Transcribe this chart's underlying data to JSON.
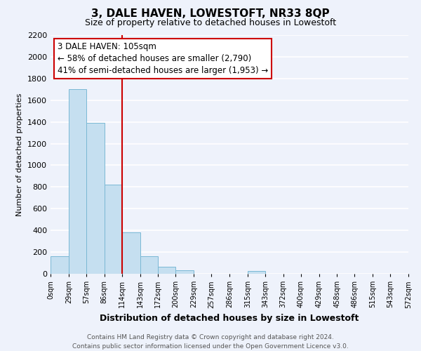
{
  "title": "3, DALE HAVEN, LOWESTOFT, NR33 8QP",
  "subtitle": "Size of property relative to detached houses in Lowestoft",
  "xlabel": "Distribution of detached houses by size in Lowestoft",
  "ylabel": "Number of detached properties",
  "bar_color": "#c5dff0",
  "bar_edge_color": "#7ab8d4",
  "background_color": "#eef2fb",
  "grid_color": "#ffffff",
  "bin_edges": [
    0,
    29,
    57,
    86,
    114,
    143,
    172,
    200,
    229,
    257,
    286,
    315,
    343,
    372,
    400,
    429,
    458,
    486,
    515,
    543,
    572
  ],
  "bin_labels": [
    "0sqm",
    "29sqm",
    "57sqm",
    "86sqm",
    "114sqm",
    "143sqm",
    "172sqm",
    "200sqm",
    "229sqm",
    "257sqm",
    "286sqm",
    "315sqm",
    "343sqm",
    "372sqm",
    "400sqm",
    "429sqm",
    "458sqm",
    "486sqm",
    "515sqm",
    "543sqm",
    "572sqm"
  ],
  "bar_heights": [
    160,
    1700,
    1390,
    820,
    380,
    160,
    65,
    30,
    0,
    0,
    0,
    25,
    0,
    0,
    0,
    0,
    0,
    0,
    0,
    0
  ],
  "vline_x": 114,
  "vline_color": "#cc0000",
  "annotation_line1": "3 DALE HAVEN: 105sqm",
  "annotation_line2": "← 58% of detached houses are smaller (2,790)",
  "annotation_line3": "41% of semi-detached houses are larger (1,953) →",
  "ylim": [
    0,
    2200
  ],
  "yticks": [
    0,
    200,
    400,
    600,
    800,
    1000,
    1200,
    1400,
    1600,
    1800,
    2000,
    2200
  ],
  "footer_line1": "Contains HM Land Registry data © Crown copyright and database right 2024.",
  "footer_line2": "Contains public sector information licensed under the Open Government Licence v3.0."
}
